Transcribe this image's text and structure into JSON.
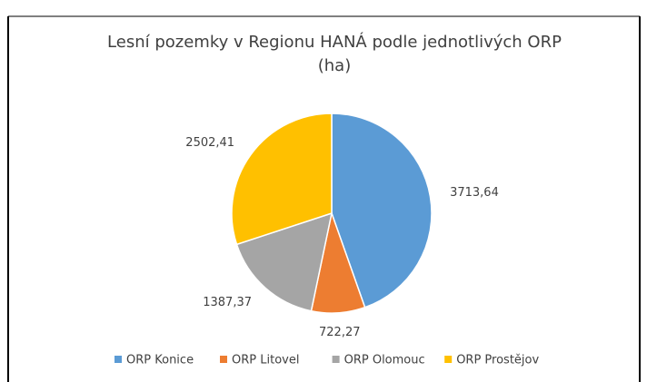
{
  "chart_data": {
    "type": "pie",
    "title": "Lesní pozemky v Regionu HANÁ podle jednotlivých ORP",
    "subtitle": "(ha)",
    "categories": [
      "ORP Konice",
      "ORP Litovel",
      "ORP Olomouc",
      "ORP Prostějov"
    ],
    "values": [
      3713.64,
      722.27,
      1387.37,
      2502.41
    ],
    "value_labels": [
      "3713,64",
      "722,27",
      "1387,37",
      "2502,41"
    ],
    "colors": [
      "#5b9bd5",
      "#ed7d31",
      "#a5a5a5",
      "#ffc000"
    ],
    "legend": "bottom"
  }
}
